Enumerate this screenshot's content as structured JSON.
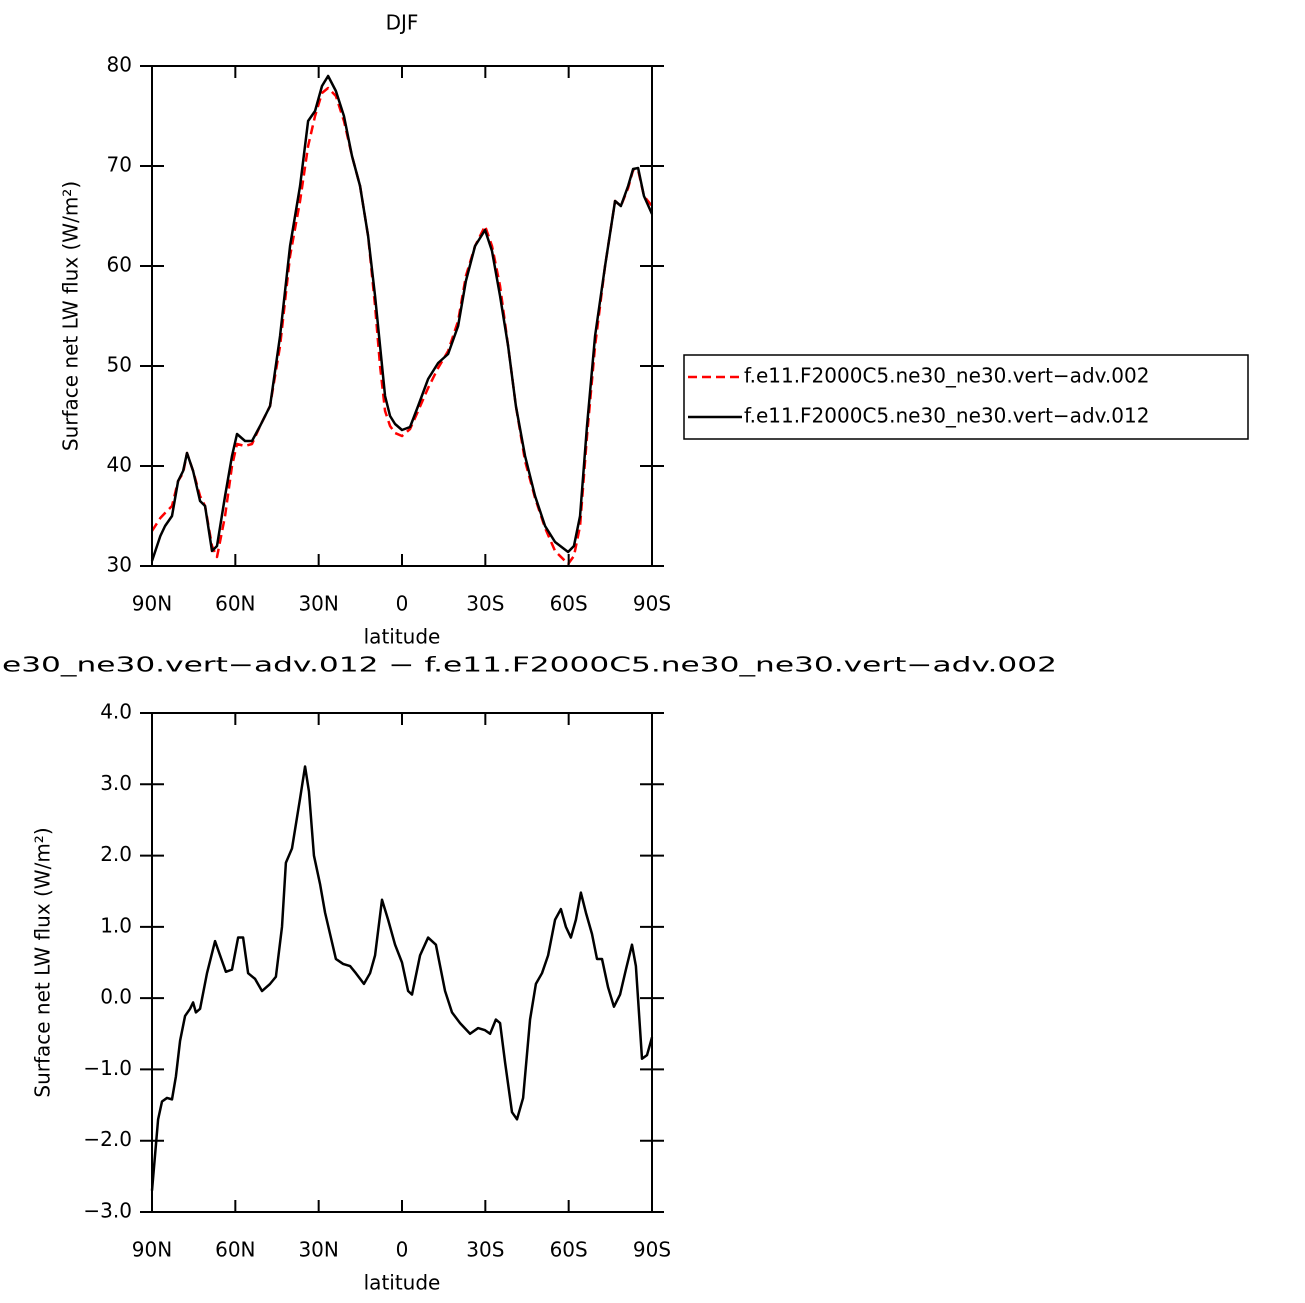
{
  "chart_data": [
    {
      "type": "line",
      "title": "DJF",
      "x_label": "latitude",
      "y_label": "Surface net LW flux (W/m²)",
      "x": [
        90,
        87,
        85.3,
        82.8,
        80.6,
        78.8,
        77.4,
        75.2,
        72.7,
        70.9,
        68.4,
        66.6,
        63.7,
        61.2,
        59.4,
        56.5,
        54,
        51.1,
        47.5,
        43.9,
        40.3,
        36.7,
        33.8,
        31.3,
        28.8,
        26.6,
        23.8,
        20.9,
        18,
        15.1,
        12.2,
        9.7,
        7.9,
        6.1,
        4.3,
        2.5,
        0,
        -2.9,
        -5.8,
        -9.4,
        -13,
        -16.6,
        -20.2,
        -23,
        -26.3,
        -29.9,
        -32.4,
        -35.3,
        -38.2,
        -41,
        -44.3,
        -47.9,
        -51.5,
        -55.1,
        -59.8,
        -61.9,
        -64.1,
        -66.6,
        -69.5,
        -73.1,
        -76.7,
        -78.8,
        -81.4,
        -83.2,
        -85,
        -87.1,
        -90
      ],
      "series": [
        {
          "name": "f.e11.F2000C5.ne30_ne30.vert−adv.002",
          "color": "#ff0000",
          "dash": "dashed",
          "values": [
            33.5,
            34.8,
            35.3,
            36,
            38.5,
            39.3,
            41.3,
            39.5,
            37,
            36,
            32,
            30.9,
            35,
            40,
            42.2,
            42,
            42.2,
            44,
            46,
            52,
            61,
            66.5,
            72,
            75,
            77.3,
            77.8,
            77,
            74.5,
            71,
            68,
            63,
            56,
            50,
            45.5,
            44,
            43.3,
            43,
            43.7,
            45.5,
            47.8,
            49.8,
            51.5,
            54.5,
            59,
            62,
            64,
            62,
            58,
            52,
            46,
            40.5,
            36.8,
            33.8,
            31.5,
            30.2,
            31,
            34,
            43,
            52,
            60,
            66.5,
            66,
            67.8,
            69.6,
            69.6,
            67,
            66
          ]
        },
        {
          "name": "f.e11.F2000C5.ne30_ne30.vert−adv.012",
          "color": "#000000",
          "dash": "solid",
          "values": [
            30.5,
            33,
            34,
            35,
            38.5,
            39.5,
            41.3,
            39.5,
            36.5,
            36,
            31.5,
            32,
            37,
            41,
            43.2,
            42.5,
            42.5,
            44,
            46,
            53,
            62,
            68,
            74.5,
            75.5,
            78,
            79,
            77.5,
            75,
            71,
            68,
            63,
            57,
            52,
            47,
            45,
            44.2,
            43.6,
            43.9,
            46,
            48.7,
            50.3,
            51.2,
            54,
            58.5,
            62,
            63.6,
            61.5,
            57,
            52,
            46,
            41,
            37,
            34,
            32.4,
            31.4,
            32,
            35,
            44,
            53,
            60,
            66.5,
            66,
            68,
            69.7,
            69.8,
            67,
            65.2
          ]
        }
      ],
      "xlim": [
        90,
        -90
      ],
      "xticks": [
        {
          "value": 90,
          "label": "90N"
        },
        {
          "value": 60,
          "label": "60N"
        },
        {
          "value": 30,
          "label": "30N"
        },
        0,
        {
          "value": -30,
          "label": "30S"
        },
        {
          "value": -60,
          "label": "60S"
        },
        {
          "value": -90,
          "label": "90S"
        }
      ],
      "ylim": [
        30,
        80
      ],
      "yticks": [
        30,
        40,
        50,
        60,
        70,
        80
      ],
      "legend": "right"
    },
    {
      "type": "line",
      "title": "e30_ne30.vert−adv.012 − f.e11.F2000C5.ne30_ne30.vert−adv.002",
      "x_label": "latitude",
      "y_label": "Surface net LW flux (W/m²)",
      "x": [
        90,
        87.8,
        86.4,
        84.6,
        82.8,
        81.4,
        79.9,
        78.1,
        76.3,
        75.2,
        74.2,
        72.7,
        70.2,
        67.3,
        65.5,
        63.4,
        61.2,
        59,
        57.2,
        55.4,
        52.9,
        50.4,
        47.5,
        45.4,
        43.2,
        41.8,
        39.6,
        36.7,
        34.9,
        33.5,
        31.7,
        29.5,
        27.7,
        25.9,
        23.8,
        21.2,
        18.7,
        16.6,
        13.7,
        11.5,
        9.7,
        7.2,
        5,
        2.5,
        0,
        -2.2,
        -3.6,
        -6.5,
        -9.4,
        -12.2,
        -15.5,
        -18,
        -20.9,
        -24.5,
        -27.4,
        -29.9,
        -31.7,
        -33.8,
        -35.3,
        -37.1,
        -39.6,
        -41.4,
        -43.6,
        -46.1,
        -48.2,
        -50.4,
        -52.6,
        -55.1,
        -57.2,
        -59,
        -60.8,
        -62.6,
        -64.4,
        -66.2,
        -68.4,
        -70.2,
        -72,
        -74.2,
        -76.3,
        -78.5,
        -80.6,
        -82.8,
        -84.2,
        -86.4,
        -88.2,
        -90
      ],
      "series": [
        {
          "color": "#000000",
          "dash": "solid",
          "values": [
            -2.7,
            -1.7,
            -1.45,
            -1.4,
            -1.42,
            -1.1,
            -0.6,
            -0.25,
            -0.15,
            -0.06,
            -0.2,
            -0.15,
            0.35,
            0.8,
            0.6,
            0.37,
            0.4,
            0.85,
            0.85,
            0.35,
            0.27,
            0.1,
            0.2,
            0.3,
            1.0,
            1.9,
            2.1,
            2.8,
            3.25,
            2.9,
            2.0,
            1.6,
            1.2,
            0.9,
            0.55,
            0.48,
            0.45,
            0.35,
            0.2,
            0.35,
            0.6,
            1.38,
            1.1,
            0.75,
            0.5,
            0.1,
            0.05,
            0.6,
            0.85,
            0.75,
            0.1,
            -0.2,
            -0.35,
            -0.5,
            -0.42,
            -0.45,
            -0.5,
            -0.3,
            -0.35,
            -0.9,
            -1.6,
            -1.7,
            -1.4,
            -0.3,
            0.2,
            0.35,
            0.6,
            1.1,
            1.25,
            1.0,
            0.85,
            1.1,
            1.48,
            1.2,
            0.9,
            0.55,
            0.55,
            0.15,
            -0.12,
            0.05,
            0.4,
            0.75,
            0.45,
            -0.85,
            -0.8,
            -0.55
          ]
        }
      ],
      "xlim": [
        90,
        -90
      ],
      "xticks": [
        {
          "value": 90,
          "label": "90N"
        },
        {
          "value": 60,
          "label": "60N"
        },
        {
          "value": 30,
          "label": "30N"
        },
        0,
        {
          "value": -30,
          "label": "30S"
        },
        {
          "value": -60,
          "label": "60S"
        },
        {
          "value": -90,
          "label": "90S"
        }
      ],
      "ylim": [
        -3,
        4
      ],
      "yticks": [
        {
          "value": -3,
          "label": "−3.0"
        },
        {
          "value": -2,
          "label": "−2.0"
        },
        {
          "value": -1,
          "label": "−1.0"
        },
        {
          "value": 0,
          "label": "0.0"
        },
        {
          "value": 1,
          "label": "1.0"
        },
        {
          "value": 2,
          "label": "2.0"
        },
        {
          "value": 3,
          "label": "3.0"
        },
        {
          "value": 4,
          "label": "4.0"
        }
      ]
    }
  ]
}
